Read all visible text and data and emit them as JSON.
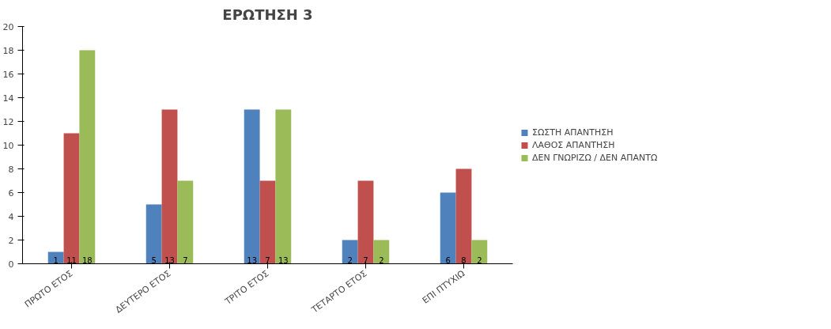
{
  "chart_data": {
    "type": "bar",
    "title": "ΕΡΩΤΗΣΗ 3",
    "categories": [
      "ΠΡΩΤΟ ΕΤΟΣ",
      "ΔΕΥΤΕΡΟ ΕΤΟΣ",
      "ΤΡΙΤΟ ΕΤΟΣ",
      "ΤΕΤΑΡΤΟ ΕΤΟΣ",
      "ΕΠΙ ΠΤΥΧΙΩ"
    ],
    "series": [
      {
        "name": "ΣΩΣΤΗ ΑΠΑΝΤΗΣΗ",
        "color": "#4f81bd",
        "values": [
          1,
          5,
          13,
          2,
          6
        ]
      },
      {
        "name": "ΛΑΘΟΣ ΑΠΑΝΤΗΣΗ",
        "color": "#c0504d",
        "values": [
          11,
          13,
          7,
          7,
          8
        ]
      },
      {
        "name": "ΔΕΝ ΓΝΩΡΙΖΩ / ΔΕΝ ΑΠΑΝΤΩ",
        "color": "#9bbb59",
        "values": [
          18,
          7,
          13,
          2,
          2
        ]
      }
    ],
    "ylim": [
      0,
      20
    ],
    "yticks": [
      0,
      2,
      4,
      6,
      8,
      10,
      12,
      14,
      16,
      18,
      20
    ],
    "grid": false,
    "legend": "right",
    "data_labels": true
  }
}
